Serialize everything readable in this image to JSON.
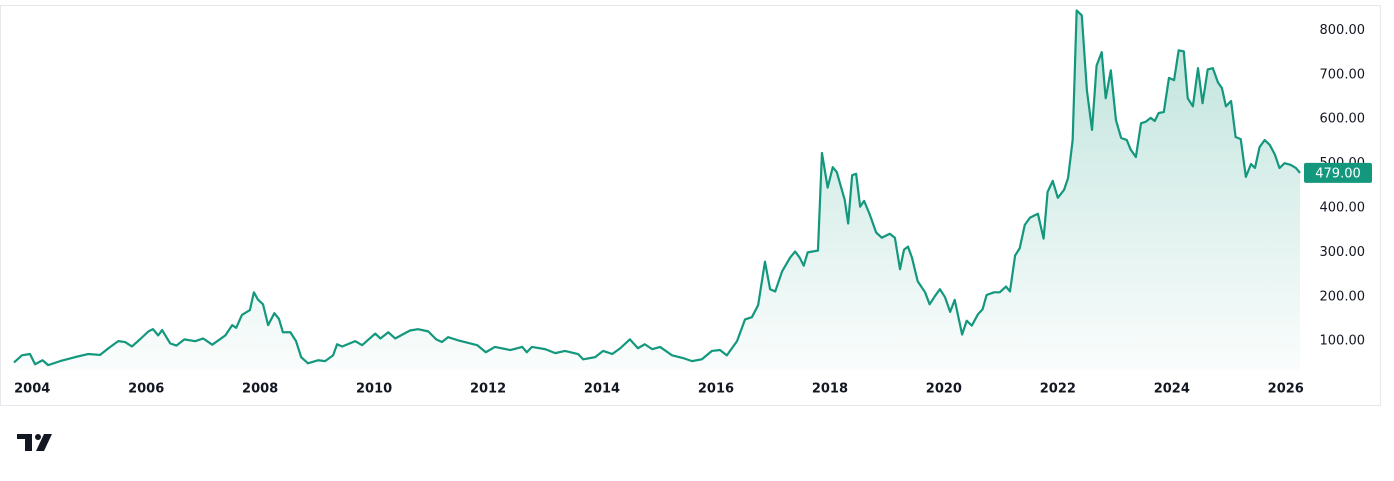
{
  "chart_data": {
    "type": "area",
    "color": "#13977d",
    "grid": false,
    "xlim": [
      2003.68,
      2026.25
    ],
    "ylim": [
      35,
      855
    ],
    "xticks": [
      2004,
      2006,
      2008,
      2010,
      2012,
      2014,
      2016,
      2018,
      2020,
      2022,
      2024,
      2026
    ],
    "yticks": [
      {
        "value": 100,
        "label": "100.00"
      },
      {
        "value": 200,
        "label": "200.00"
      },
      {
        "value": 300,
        "label": "300.00"
      },
      {
        "value": 400,
        "label": "400.00"
      },
      {
        "value": 500,
        "label": "500.00"
      },
      {
        "value": 600,
        "label": "600.00"
      },
      {
        "value": 700,
        "label": "700.00"
      },
      {
        "value": 800,
        "label": "800.00"
      }
    ],
    "last_value_label": "479.00",
    "branding": "TradingView",
    "x": [
      2003.68,
      2003.82,
      2003.96,
      2004.05,
      2004.18,
      2004.28,
      2004.49,
      2004.75,
      2004.98,
      2005.19,
      2005.37,
      2005.51,
      2005.63,
      2005.75,
      2005.89,
      2006.04,
      2006.12,
      2006.21,
      2006.28,
      2006.42,
      2006.53,
      2006.67,
      2006.86,
      2007.0,
      2007.16,
      2007.39,
      2007.51,
      2007.58,
      2007.68,
      2007.82,
      2007.89,
      2007.96,
      2008.05,
      2008.14,
      2008.25,
      2008.33,
      2008.4,
      2008.53,
      2008.63,
      2008.72,
      2008.84,
      2009.02,
      2009.14,
      2009.28,
      2009.35,
      2009.44,
      2009.67,
      2009.79,
      2010.02,
      2010.11,
      2010.25,
      2010.37,
      2010.63,
      2010.77,
      2010.95,
      2011.09,
      2011.19,
      2011.3,
      2011.47,
      2011.68,
      2011.81,
      2011.96,
      2012.12,
      2012.39,
      2012.6,
      2012.68,
      2012.77,
      2013.0,
      2013.18,
      2013.35,
      2013.58,
      2013.67,
      2013.88,
      2014.02,
      2014.18,
      2014.32,
      2014.49,
      2014.63,
      2014.75,
      2014.88,
      2015.02,
      2015.23,
      2015.42,
      2015.58,
      2015.75,
      2015.93,
      2016.07,
      2016.19,
      2016.37,
      2016.51,
      2016.63,
      2016.74,
      2016.86,
      2016.95,
      2017.04,
      2017.16,
      2017.3,
      2017.39,
      2017.47,
      2017.54,
      2017.61,
      2017.79,
      2017.86,
      2017.96,
      2018.05,
      2018.12,
      2018.26,
      2018.32,
      2018.39,
      2018.46,
      2018.53,
      2018.6,
      2018.7,
      2018.81,
      2018.91,
      2019.05,
      2019.14,
      2019.23,
      2019.3,
      2019.37,
      2019.44,
      2019.54,
      2019.67,
      2019.75,
      2019.84,
      2019.93,
      2020.02,
      2020.11,
      2020.19,
      2020.32,
      2020.4,
      2020.49,
      2020.6,
      2020.68,
      2020.75,
      2020.88,
      2020.98,
      2021.09,
      2021.16,
      2021.25,
      2021.33,
      2021.42,
      2021.51,
      2021.65,
      2021.75,
      2021.82,
      2021.91,
      2022.0,
      2022.11,
      2022.18,
      2022.26,
      2022.33,
      2022.42,
      2022.51,
      2022.6,
      2022.68,
      2022.77,
      2022.84,
      2022.93,
      2023.02,
      2023.11,
      2023.21,
      2023.28,
      2023.37,
      2023.46,
      2023.54,
      2023.63,
      2023.7,
      2023.77,
      2023.86,
      2023.95,
      2024.04,
      2024.12,
      2024.21,
      2024.28,
      2024.37,
      2024.46,
      2024.54,
      2024.63,
      2024.72,
      2024.81,
      2024.88,
      2024.95,
      2025.04,
      2025.12,
      2025.21,
      2025.3,
      2025.39,
      2025.46,
      2025.54,
      2025.63,
      2025.72,
      2025.81,
      2025.89,
      2025.98,
      2026.09,
      2026.18,
      2026.25
    ],
    "values": [
      52,
      68,
      71,
      48,
      57,
      46,
      55,
      64,
      71,
      69,
      87,
      100,
      98,
      88,
      104,
      122,
      127,
      113,
      125,
      95,
      90,
      104,
      100,
      106,
      92,
      113,
      136,
      130,
      159,
      170,
      210,
      194,
      183,
      136,
      163,
      150,
      120,
      120,
      100,
      64,
      50,
      57,
      55,
      68,
      93,
      88,
      100,
      91,
      117,
      106,
      120,
      106,
      124,
      127,
      122,
      104,
      98,
      109,
      102,
      95,
      91,
      75,
      87,
      80,
      87,
      75,
      87,
      82,
      73,
      78,
      71,
      59,
      64,
      78,
      71,
      84,
      104,
      84,
      93,
      82,
      87,
      68,
      62,
      55,
      59,
      78,
      80,
      68,
      100,
      149,
      154,
      181,
      279,
      217,
      212,
      257,
      288,
      302,
      288,
      270,
      300,
      304,
      524,
      446,
      492,
      481,
      418,
      365,
      474,
      477,
      403,
      416,
      385,
      345,
      333,
      342,
      333,
      262,
      306,
      313,
      288,
      235,
      210,
      183,
      201,
      217,
      199,
      166,
      193,
      115,
      146,
      135,
      161,
      172,
      204,
      210,
      210,
      223,
      212,
      293,
      309,
      362,
      378,
      387,
      331,
      436,
      461,
      423,
      441,
      468,
      553,
      845,
      834,
      665,
      576,
      721,
      751,
      647,
      710,
      598,
      558,
      553,
      531,
      515,
      591,
      594,
      603,
      596,
      614,
      616,
      693,
      688,
      755,
      753,
      647,
      629,
      715,
      636,
      712,
      715,
      683,
      670,
      629,
      641,
      560,
      555,
      470,
      499,
      490,
      537,
      553,
      542,
      520,
      490,
      501,
      497,
      490,
      479
    ]
  }
}
